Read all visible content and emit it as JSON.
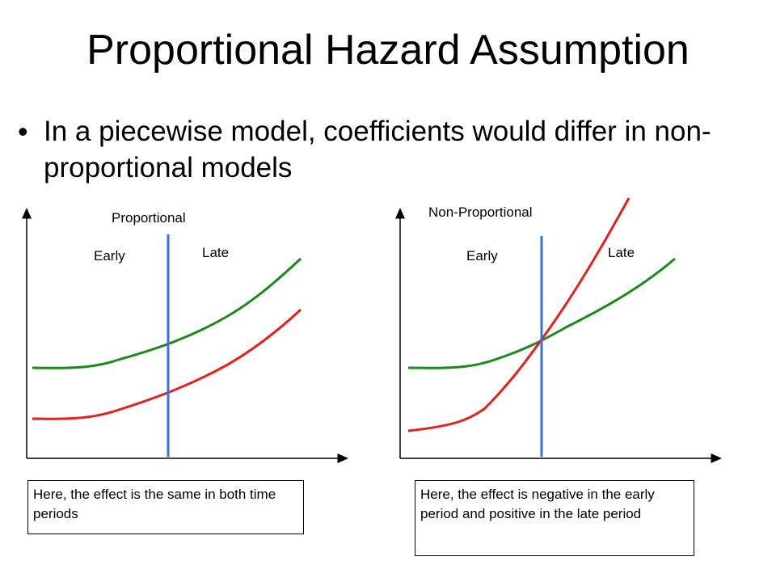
{
  "slide": {
    "title": "Proportional Hazard Assumption",
    "bullet": "In a piecewise model, coefficients would differ in non-proportional models"
  },
  "panels": [
    {
      "heading": "Proportional",
      "early_label": "Early",
      "late_label": "Late",
      "caption": "Here, the effect is the same in both time periods"
    },
    {
      "heading": "Non-Proportional",
      "early_label": "Early",
      "late_label": "Late",
      "caption": "Here, the effect is negative in the early period and positive in the late period"
    }
  ],
  "colors": {
    "green_curve": "#1a8a1a",
    "red_curve": "#e8201c",
    "divider": "#3a6fe0",
    "axis": "#000000"
  }
}
